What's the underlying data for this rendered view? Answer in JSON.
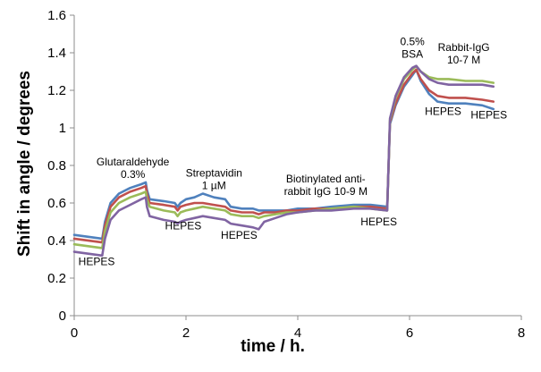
{
  "chart_data": {
    "type": "line",
    "title": "",
    "xlabel": "time / h.",
    "ylabel": "Shift in angle / degrees",
    "xlim": [
      0,
      8
    ],
    "ylim": [
      0,
      1.6
    ],
    "xticks": [
      "0",
      "2",
      "4",
      "6",
      "8"
    ],
    "yticks": [
      "0",
      "0.2",
      "0.4",
      "0.6",
      "0.8",
      "1",
      "1.2",
      "1.4",
      "1.6"
    ],
    "grid": false,
    "legend": "none",
    "series": [
      {
        "color": "#4f81bd",
        "x": [
          0,
          0.5,
          0.55,
          0.65,
          0.8,
          1.0,
          1.2,
          1.28,
          1.3,
          1.35,
          1.6,
          1.8,
          1.85,
          1.9,
          2.0,
          2.15,
          2.3,
          2.5,
          2.7,
          2.75,
          2.8,
          3.0,
          3.2,
          3.3,
          3.4,
          3.6,
          3.8,
          4.0,
          4.3,
          4.6,
          5.0,
          5.3,
          5.6,
          5.65,
          5.75,
          5.9,
          6.05,
          6.12,
          6.2,
          6.35,
          6.5,
          6.7,
          7.0,
          7.3,
          7.5
        ],
        "y": [
          0.43,
          0.41,
          0.5,
          0.6,
          0.65,
          0.68,
          0.7,
          0.71,
          0.67,
          0.62,
          0.61,
          0.6,
          0.58,
          0.6,
          0.62,
          0.63,
          0.65,
          0.63,
          0.62,
          0.6,
          0.58,
          0.57,
          0.57,
          0.56,
          0.56,
          0.56,
          0.56,
          0.57,
          0.57,
          0.58,
          0.59,
          0.59,
          0.58,
          1.02,
          1.12,
          1.22,
          1.28,
          1.31,
          1.25,
          1.18,
          1.14,
          1.13,
          1.13,
          1.12,
          1.1
        ]
      },
      {
        "color": "#c0504d",
        "x": [
          0,
          0.5,
          0.55,
          0.65,
          0.8,
          1.0,
          1.2,
          1.28,
          1.3,
          1.35,
          1.6,
          1.8,
          1.85,
          1.9,
          2.0,
          2.15,
          2.3,
          2.5,
          2.7,
          2.75,
          2.8,
          3.0,
          3.2,
          3.3,
          3.4,
          3.6,
          3.8,
          4.0,
          4.3,
          4.6,
          5.0,
          5.3,
          5.6,
          5.65,
          5.75,
          5.9,
          6.05,
          6.12,
          6.2,
          6.35,
          6.5,
          6.7,
          7.0,
          7.3,
          7.5
        ],
        "y": [
          0.41,
          0.39,
          0.48,
          0.58,
          0.63,
          0.66,
          0.68,
          0.69,
          0.65,
          0.6,
          0.59,
          0.58,
          0.56,
          0.58,
          0.59,
          0.6,
          0.6,
          0.59,
          0.58,
          0.57,
          0.56,
          0.55,
          0.55,
          0.54,
          0.55,
          0.55,
          0.56,
          0.56,
          0.57,
          0.57,
          0.58,
          0.58,
          0.57,
          1.03,
          1.13,
          1.23,
          1.29,
          1.31,
          1.26,
          1.2,
          1.17,
          1.16,
          1.16,
          1.15,
          1.14
        ]
      },
      {
        "color": "#9bbb59",
        "x": [
          0,
          0.5,
          0.55,
          0.65,
          0.8,
          1.0,
          1.2,
          1.28,
          1.3,
          1.35,
          1.6,
          1.8,
          1.85,
          1.9,
          2.0,
          2.15,
          2.3,
          2.5,
          2.7,
          2.75,
          2.8,
          3.0,
          3.2,
          3.3,
          3.4,
          3.6,
          3.8,
          4.0,
          4.3,
          4.6,
          5.0,
          5.3,
          5.6,
          5.65,
          5.75,
          5.9,
          6.05,
          6.12,
          6.2,
          6.35,
          6.5,
          6.7,
          7.0,
          7.3,
          7.5
        ],
        "y": [
          0.38,
          0.36,
          0.45,
          0.55,
          0.6,
          0.63,
          0.65,
          0.66,
          0.62,
          0.58,
          0.56,
          0.55,
          0.53,
          0.55,
          0.56,
          0.57,
          0.58,
          0.57,
          0.56,
          0.55,
          0.54,
          0.53,
          0.53,
          0.52,
          0.53,
          0.54,
          0.55,
          0.55,
          0.56,
          0.57,
          0.58,
          0.57,
          0.56,
          1.04,
          1.16,
          1.26,
          1.31,
          1.33,
          1.3,
          1.27,
          1.26,
          1.26,
          1.25,
          1.25,
          1.24
        ]
      },
      {
        "color": "#8064a2",
        "x": [
          0,
          0.5,
          0.55,
          0.65,
          0.8,
          1.0,
          1.2,
          1.28,
          1.3,
          1.35,
          1.6,
          1.8,
          1.85,
          1.9,
          2.0,
          2.15,
          2.3,
          2.5,
          2.7,
          2.75,
          2.8,
          3.0,
          3.2,
          3.3,
          3.4,
          3.6,
          3.8,
          4.0,
          4.3,
          4.6,
          5.0,
          5.3,
          5.6,
          5.65,
          5.75,
          5.9,
          6.05,
          6.12,
          6.2,
          6.35,
          6.5,
          6.7,
          7.0,
          7.3,
          7.5
        ],
        "y": [
          0.34,
          0.32,
          0.41,
          0.51,
          0.56,
          0.59,
          0.62,
          0.63,
          0.58,
          0.53,
          0.51,
          0.5,
          0.49,
          0.5,
          0.51,
          0.52,
          0.53,
          0.52,
          0.51,
          0.5,
          0.49,
          0.48,
          0.47,
          0.46,
          0.5,
          0.52,
          0.54,
          0.55,
          0.56,
          0.56,
          0.57,
          0.57,
          0.56,
          1.05,
          1.17,
          1.27,
          1.32,
          1.33,
          1.3,
          1.26,
          1.24,
          1.23,
          1.23,
          1.23,
          1.22
        ]
      }
    ],
    "annotations": [
      {
        "lines": [
          "HEPES"
        ],
        "x": 0.4,
        "y": 0.27
      },
      {
        "lines": [
          "Glutaraldehyde",
          "0.3%"
        ],
        "x": 1.05,
        "y": 0.8
      },
      {
        "lines": [
          "HEPES"
        ],
        "x": 1.95,
        "y": 0.46
      },
      {
        "lines": [
          "Streptavidin",
          "1 µM"
        ],
        "x": 2.5,
        "y": 0.74
      },
      {
        "lines": [
          "HEPES"
        ],
        "x": 2.95,
        "y": 0.41
      },
      {
        "lines": [
          "Biotinylated anti-",
          "rabbit IgG 10-9 M"
        ],
        "x": 4.5,
        "y": 0.71
      },
      {
        "lines": [
          "HEPES"
        ],
        "x": 5.45,
        "y": 0.48
      },
      {
        "lines": [
          "0.5%",
          "BSA"
        ],
        "x": 6.05,
        "y": 1.44
      },
      {
        "lines": [
          "Rabbit-IgG",
          "10-7 M"
        ],
        "x": 6.97,
        "y": 1.41
      },
      {
        "lines": [
          "HEPES"
        ],
        "x": 6.6,
        "y": 1.07
      },
      {
        "lines": [
          "HEPES"
        ],
        "x": 7.42,
        "y": 1.05
      }
    ]
  }
}
